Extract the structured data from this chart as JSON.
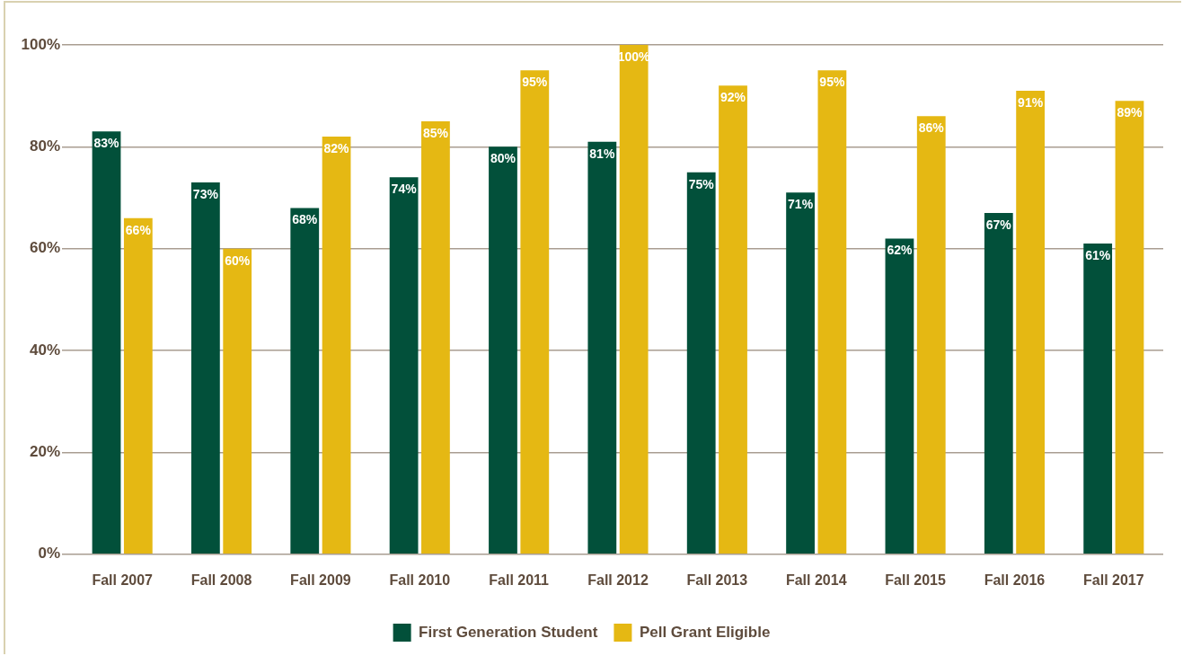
{
  "chart_data": {
    "type": "bar",
    "categories": [
      "Fall 2007",
      "Fall 2008",
      "Fall 2009",
      "Fall 2010",
      "Fall 2011",
      "Fall 2012",
      "Fall 2013",
      "Fall 2014",
      "Fall 2015",
      "Fall 2016",
      "Fall 2017"
    ],
    "series": [
      {
        "name": "First Generation Student",
        "color": "#02503a",
        "values": [
          83,
          73,
          68,
          74,
          80,
          81,
          75,
          71,
          62,
          67,
          61
        ],
        "value_labels": [
          "83%",
          "73%",
          "68%",
          "74%",
          "80%",
          "81%",
          "75%",
          "71%",
          "62%",
          "67%",
          "61%"
        ]
      },
      {
        "name": "Pell Grant Eligible",
        "color": "#e5b813",
        "values": [
          66,
          60,
          82,
          85,
          95,
          100,
          92,
          95,
          86,
          91,
          89
        ],
        "value_labels": [
          "66%",
          "60%",
          "82%",
          "85%",
          "95%",
          "100%",
          "92%",
          "95%",
          "86%",
          "91%",
          "89%"
        ]
      }
    ],
    "ylim": [
      0,
      100
    ],
    "yticks": [
      {
        "value": 0,
        "label": "0%"
      },
      {
        "value": 20,
        "label": "20%"
      },
      {
        "value": 40,
        "label": "40%"
      },
      {
        "value": 60,
        "label": "60%"
      },
      {
        "value": 80,
        "label": "80%"
      },
      {
        "value": 100,
        "label": "100%"
      }
    ],
    "grid": "y",
    "legend": "bottom"
  }
}
